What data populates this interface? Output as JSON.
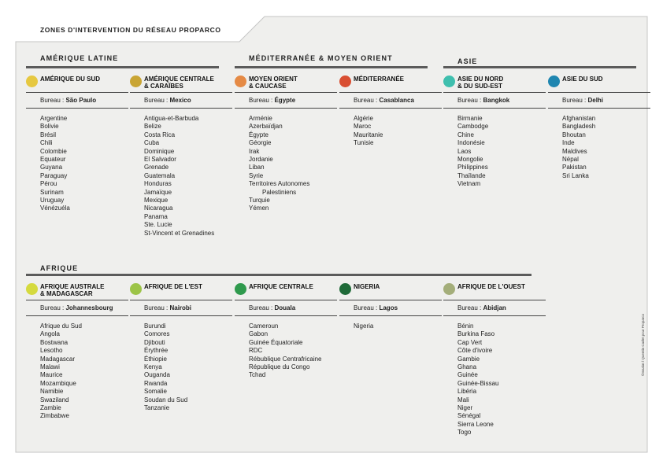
{
  "title": "ZONES D'INTERVENTION DU RÉSEAU PROPARCO",
  "bureau_prefix": "Bureau : ",
  "groups": [
    {
      "id": "latin",
      "label": "AMÉRIQUE LATINE"
    },
    {
      "id": "medi",
      "label": "MÉDITERRANÉE & MOYEN ORIENT"
    },
    {
      "id": "asia",
      "label": "ASIE"
    },
    {
      "id": "africa",
      "label": "AFRIQUE"
    }
  ],
  "zones": [
    {
      "name": "AMÉRIQUE DU SUD",
      "color": "#e6c840",
      "bureau": "São Paulo",
      "countries": [
        "Argentine",
        "Bolivie",
        "Brésil",
        "Chili",
        "Colombie",
        "Equateur",
        "Guyana",
        "Paraguay",
        "Pérou",
        "Surinam",
        "Uruguay",
        "Vénézuéla"
      ]
    },
    {
      "name": "AMÉRIQUE CENTRALE\n& CARAÏBES",
      "color": "#c9a534",
      "bureau": "Mexico",
      "countries": [
        "Antigua-et-Barbuda",
        "Belize",
        "Costa Rica",
        "Cuba",
        "Dominique",
        "El Salvador",
        "Grenade",
        "Guatemala",
        "Honduras",
        "Jamaïque",
        "Mexique",
        "Nicaragua",
        "Panama",
        "Ste. Lucie",
        "St-Vincent et Grenadines"
      ]
    },
    {
      "name": "MOYEN ORIENT\n& CAUCASE",
      "color": "#e58a45",
      "bureau": "Égypte",
      "countries": [
        "Arménie",
        "Azerbaïdjan",
        "Égypte",
        "Géorgie",
        "Irak",
        "Jordanie",
        "Liban",
        "Syrie",
        "Territoires Autonomes",
        "Palestiniens",
        "Turquie",
        "Yémen"
      ]
    },
    {
      "name": "MÉDITERRANÉE",
      "color": "#d94f32",
      "bureau": "Casablanca",
      "countries": [
        "Algérie",
        "Maroc",
        "Mauritanie",
        "Tunisie"
      ]
    },
    {
      "name": "ASIE DU NORD\n& DU SUD-EST",
      "color": "#3fbfae",
      "bureau": "Bangkok",
      "countries": [
        "Birmanie",
        "Cambodge",
        "Chine",
        "Indonésie",
        "Laos",
        "Mongolie",
        "Philippines",
        "Thaïlande",
        "Vietnam"
      ]
    },
    {
      "name": "ASIE DU SUD",
      "color": "#1f86b0",
      "bureau": "Delhi",
      "countries": [
        "Afghanistan",
        "Bangladesh",
        "Bhoutan",
        "Inde",
        "Maldives",
        "Népal",
        "Pakistan",
        "Sri Lanka"
      ]
    },
    {
      "name": "AFRIQUE AUSTRALE\n& MADAGASCAR",
      "color": "#d5da3e",
      "bureau": "Johannesbourg",
      "countries": [
        "Afrique du Sud",
        "Angola",
        "Bostwana",
        "Lesotho",
        "Madagascar",
        "Malawi",
        "Maurice",
        "Mozambique",
        "Namibie",
        "Swaziland",
        "Zambie",
        "Zimbabwe"
      ]
    },
    {
      "name": "AFRIQUE DE L'EST",
      "color": "#9cc447",
      "bureau": "Nairobi",
      "countries": [
        "Burundi",
        "Comores",
        "Djibouti",
        "Érythrée",
        "Éthiopie",
        "Kenya",
        "Ouganda",
        "Rwanda",
        "Somalie",
        "Soudan du Sud",
        "Tanzanie"
      ]
    },
    {
      "name": "AFRIQUE CENTRALE",
      "color": "#2f9a4d",
      "bureau": "Douala",
      "countries": [
        "Cameroun",
        "Gabon",
        "Guinée Équatoriale",
        "RDC",
        "Rébublique Centrafricaine",
        "République du Congo",
        "Tchad"
      ]
    },
    {
      "name": "NIGERIA",
      "color": "#1f6a38",
      "bureau": "Lagos",
      "countries": [
        "Nigeria"
      ]
    },
    {
      "name": "AFRIQUE DE L'OUEST",
      "color": "#a4ae7a",
      "bureau": "Abidjan",
      "countries": [
        "Bénin",
        "Burkina Faso",
        "Cap Vert",
        "Côte d'ivoire",
        "Gambie",
        "Ghana",
        "Guinée",
        "Guinée-Bissau",
        "Libéria",
        "Mali",
        "Niger",
        "Sénégal",
        "Sierra Leone",
        "Togo"
      ]
    }
  ],
  "credit": "©Insalat / Quentin Cadet pour Proparco"
}
